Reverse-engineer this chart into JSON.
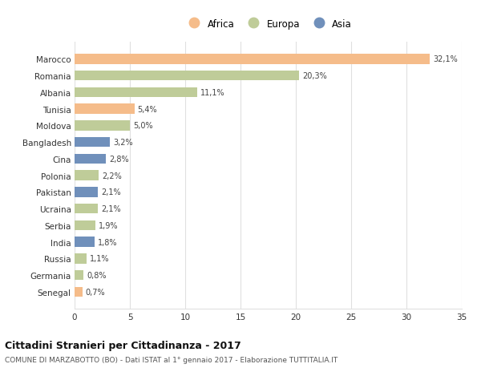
{
  "countries": [
    "Marocco",
    "Romania",
    "Albania",
    "Tunisia",
    "Moldova",
    "Bangladesh",
    "Cina",
    "Polonia",
    "Pakistan",
    "Ucraina",
    "Serbia",
    "India",
    "Russia",
    "Germania",
    "Senegal"
  ],
  "values": [
    32.1,
    20.3,
    11.1,
    5.4,
    5.0,
    3.2,
    2.8,
    2.2,
    2.1,
    2.1,
    1.9,
    1.8,
    1.1,
    0.8,
    0.7
  ],
  "labels": [
    "32,1%",
    "20,3%",
    "11,1%",
    "5,4%",
    "5,0%",
    "3,2%",
    "2,8%",
    "2,2%",
    "2,1%",
    "2,1%",
    "1,9%",
    "1,8%",
    "1,1%",
    "0,8%",
    "0,7%"
  ],
  "continents": [
    "Africa",
    "Europa",
    "Europa",
    "Africa",
    "Europa",
    "Asia",
    "Asia",
    "Europa",
    "Asia",
    "Europa",
    "Europa",
    "Asia",
    "Europa",
    "Europa",
    "Africa"
  ],
  "colors": {
    "Africa": "#F5BC8A",
    "Europa": "#BFCC99",
    "Asia": "#7090BB"
  },
  "title": "Cittadini Stranieri per Cittadinanza - 2017",
  "subtitle": "COMUNE DI MARZABOTTO (BO) - Dati ISTAT al 1° gennaio 2017 - Elaborazione TUTTITALIA.IT",
  "xlim": [
    0,
    35
  ],
  "xticks": [
    0,
    5,
    10,
    15,
    20,
    25,
    30,
    35
  ],
  "background_color": "#ffffff",
  "grid_color": "#e0e0e0",
  "bar_height": 0.6
}
